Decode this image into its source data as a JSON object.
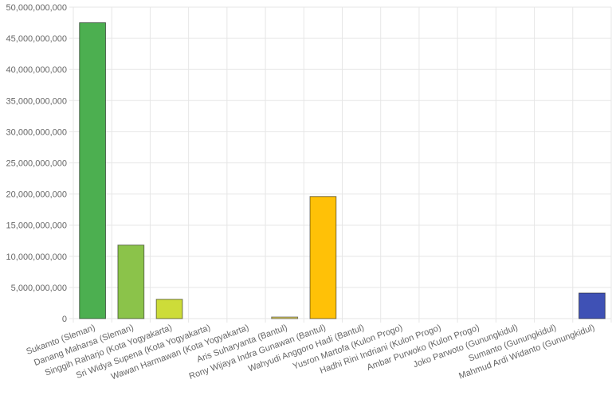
{
  "chart_data": {
    "type": "bar",
    "categories": [
      "Sukamto (Sleman)",
      "Danang Maharsa (Sleman)",
      "Singgih Raharjo (Kota Yogyakarta)",
      "Sri Widya Supena (Kota Yogyakarta)",
      "Wawan Harmawan (Kota Yogyakarta)",
      "Aris Suharyanta (Bantul)",
      "Rony Wijaya Indra Gunawan (Bantul)",
      "Wahyudi Anggoro Hadi (Bantul)",
      "Yusron Martofa (Kulon Progo)",
      "Hadhi Rini Indriani (Kulon Progo)",
      "Ambar Purwoko (Kulon Progo)",
      "Joko Parwoto (Gunungkidul)",
      "Sumanto (Gunungkidul)",
      "Mahmud Ardi Widanto (Gunungkidul)"
    ],
    "values": [
      47500000000,
      11800000000,
      3100000000,
      0,
      0,
      250000000,
      19600000000,
      0,
      0,
      0,
      0,
      0,
      0,
      4100000000
    ],
    "colors": [
      "#4caf50",
      "#8bc34a",
      "#cddc39",
      "#ffeb3b",
      "#ffeb3b",
      "#e6d96b",
      "#ffc107",
      "#ff9800",
      "#ff5722",
      "#f44336",
      "#e91e63",
      "#9c27b0",
      "#673ab7",
      "#3f51b5"
    ],
    "ylim": [
      0,
      50000000000
    ],
    "yticks": [
      0,
      {
        "value": 5000000000,
        "label": "5,000,000,000"
      },
      {
        "value": 10000000000,
        "label": "10,000,000,000"
      },
      {
        "value": 15000000000,
        "label": "15,000,000,000"
      },
      {
        "value": 20000000000,
        "label": "20,000,000,000"
      },
      {
        "value": 25000000000,
        "label": "25,000,000,000"
      },
      {
        "value": 30000000000,
        "label": "30,000,000,000"
      },
      {
        "value": 35000000000,
        "label": "35,000,000,000"
      },
      {
        "value": 40000000000,
        "label": "40,000,000,000"
      },
      {
        "value": 45000000000,
        "label": "45,000,000,000"
      },
      {
        "value": 50000000000,
        "label": "50,000,000,000"
      }
    ],
    "grid": true
  }
}
